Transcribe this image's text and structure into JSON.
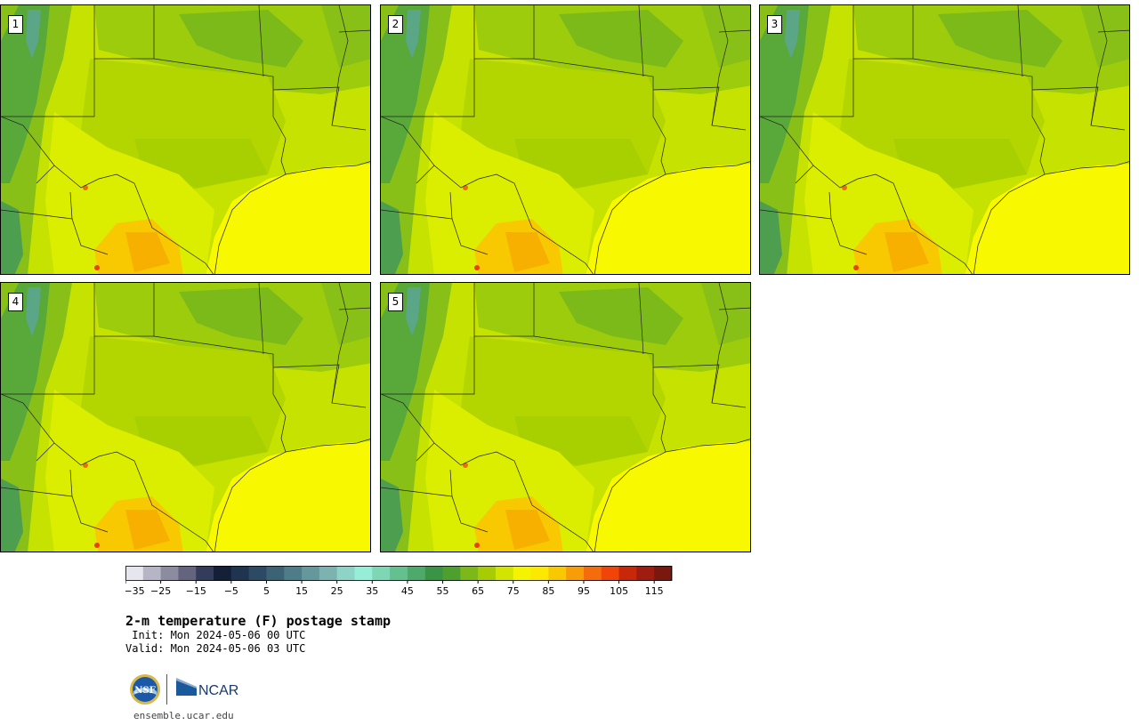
{
  "product": {
    "title": "2-m temperature (F) postage stamp",
    "init_line": " Init: Mon 2024-05-06 00 UTC",
    "valid_line": "Valid: Mon 2024-05-06 03 UTC"
  },
  "members": [
    "1",
    "2",
    "3",
    "4",
    "5"
  ],
  "colorbar": {
    "tick_labels": [
      "−35",
      "−25",
      "−15",
      "−5",
      "5",
      "15",
      "25",
      "35",
      "45",
      "55",
      "65",
      "75",
      "85",
      "95",
      "105",
      "115"
    ],
    "bins_f": [
      -35,
      -30,
      -25,
      -20,
      -15,
      -10,
      -5,
      0,
      5,
      10,
      15,
      20,
      25,
      30,
      35,
      40,
      45,
      50,
      55,
      60,
      65,
      70,
      75,
      80,
      85,
      90,
      95,
      100,
      105,
      110,
      115,
      120
    ],
    "colors": [
      "#e6e6ee",
      "#b5b5c6",
      "#8c8ca1",
      "#64647e",
      "#343c5c",
      "#142038",
      "#1e3450",
      "#2c4a64",
      "#3c6276",
      "#4e7c88",
      "#64989c",
      "#7cb2b0",
      "#8ed4c6",
      "#96eed8",
      "#7ed6b4",
      "#64c08e",
      "#4eaa6a",
      "#3a9446",
      "#4ea02e",
      "#7cb818",
      "#a8cc04",
      "#d2e400",
      "#f4f400",
      "#fce800",
      "#f8c800",
      "#f89c08",
      "#f46c0c",
      "#f04408",
      "#c82808",
      "#a01c10",
      "#7a180e"
    ]
  },
  "map_colors": {
    "warm_yellow": "#f8f800",
    "light_yellowgreen": "#d8ec00",
    "yellowgreen": "#b6d800",
    "green": "#88c018",
    "darkgreen": "#58a83a",
    "teal": "#5aa686",
    "orange": "#f8b000",
    "red": "#e84010"
  },
  "branding": {
    "nsf_text": "NSF",
    "ncar_text": "NCAR",
    "url": "ensemble.ucar.edu"
  }
}
